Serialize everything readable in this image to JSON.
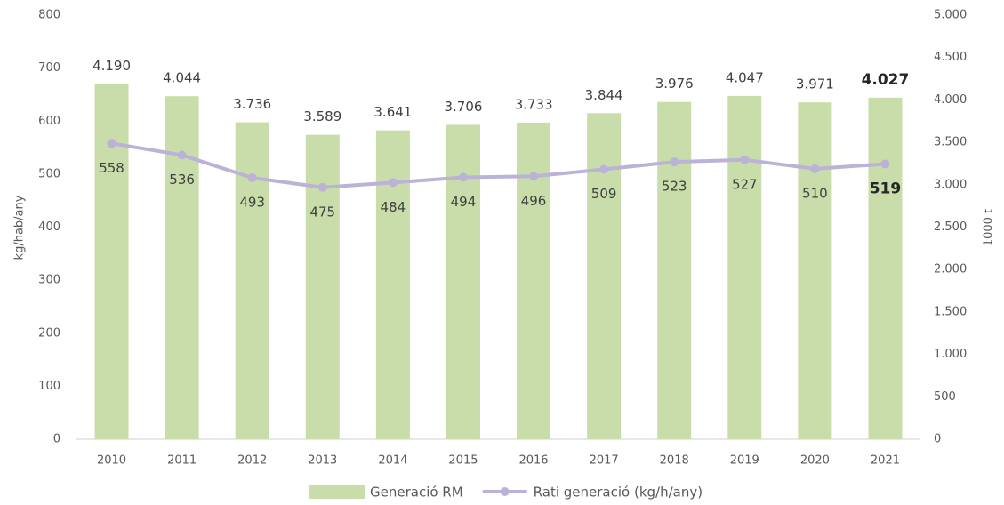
{
  "chart_data": {
    "type": "bar",
    "categories": [
      "2010",
      "2011",
      "2012",
      "2013",
      "2014",
      "2015",
      "2016",
      "2017",
      "2018",
      "2019",
      "2020",
      "2021"
    ],
    "series": [
      {
        "name": "Generació RM",
        "type": "bar",
        "axis": "y2",
        "color": "#c9ddaa",
        "values": [
          4190,
          4044,
          3736,
          3589,
          3641,
          3706,
          3733,
          3844,
          3976,
          4047,
          3971,
          4027
        ],
        "value_labels": [
          "4.190",
          "4.044",
          "3.736",
          "3.589",
          "3.641",
          "3.706",
          "3.733",
          "3.844",
          "3.976",
          "4.047",
          "3.971",
          "4.027"
        ]
      },
      {
        "name": "Rati generació (kg/h/any)",
        "type": "line",
        "axis": "y",
        "color": "#bcb2d8",
        "values": [
          558,
          536,
          493,
          475,
          484,
          494,
          496,
          509,
          523,
          527,
          510,
          519
        ]
      }
    ],
    "ylabel": "kg/hab/any",
    "y2label": "1000 t",
    "ylim": [
      0,
      800
    ],
    "yticks": [
      0,
      100,
      200,
      300,
      400,
      500,
      600,
      700,
      800
    ],
    "y2lim": [
      0,
      5000
    ],
    "y2ticks": [
      0,
      500,
      {
        "value": 1000,
        "label": "1.000"
      },
      {
        "value": 1500,
        "label": "1.500"
      },
      {
        "value": 2000,
        "label": "2.000"
      },
      {
        "value": 2500,
        "label": "2.500"
      },
      {
        "value": 3000,
        "label": "3.000"
      },
      {
        "value": 3500,
        "label": "3.500"
      },
      {
        "value": 4000,
        "label": "4.000"
      },
      {
        "value": 4500,
        "label": "4.500"
      },
      {
        "value": 5000,
        "label": "5.000"
      }
    ],
    "legend": "bottom"
  }
}
